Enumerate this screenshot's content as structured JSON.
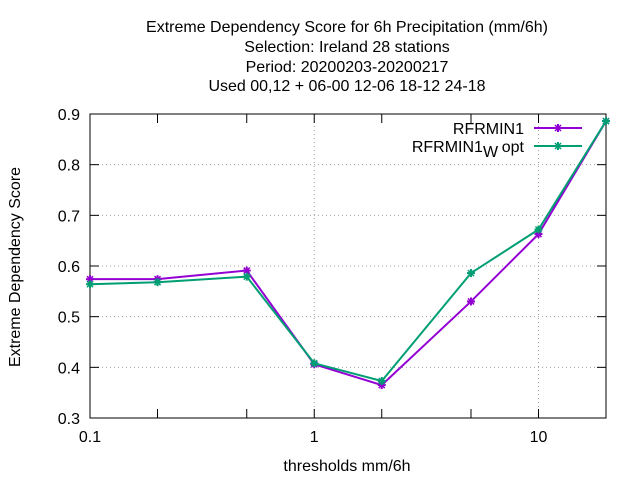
{
  "chart_data": {
    "type": "line",
    "title_lines": [
      "Extreme Dependency Score  for 6h Precipitation (mm/6h)",
      "Selection: Ireland     28 stations",
      "Period: 20200203-20200217",
      "Used  00,12  + 06-00 12-06 18-12 24-18"
    ],
    "xlabel": "thresholds mm/6h",
    "ylabel": "Extreme Dependency Score",
    "x_scale": "log",
    "xlim": [
      0.1,
      20
    ],
    "ylim": [
      0.3,
      0.9
    ],
    "x_major_ticks": [
      0.1,
      1,
      10
    ],
    "x_major_tick_labels": [
      "0.1",
      "1",
      "10"
    ],
    "x_minor_ticks": [
      0.2,
      0.5,
      2,
      5,
      20
    ],
    "y_ticks": [
      0.3,
      0.4,
      0.5,
      0.6,
      0.7,
      0.8,
      0.9
    ],
    "y_tick_labels": [
      "0.3",
      "0.4",
      "0.5",
      "0.6",
      "0.7",
      "0.8",
      "0.9"
    ],
    "grid": true,
    "legend_position": "top-right",
    "x": [
      0.1,
      0.2,
      0.5,
      1,
      2,
      5,
      10,
      20
    ],
    "series": [
      {
        "name_main": "RFRMIN1",
        "name_sub": "",
        "name_tail": "",
        "color": "#9400d3",
        "marker": "plus",
        "values": [
          0.574,
          0.574,
          0.591,
          0.406,
          0.365,
          0.53,
          0.663,
          0.886
        ]
      },
      {
        "name_main": "RFRMIN1",
        "name_sub": "W",
        "name_tail": "opt",
        "color": "#009e73",
        "marker": "plus",
        "values": [
          0.564,
          0.568,
          0.579,
          0.408,
          0.373,
          0.586,
          0.672,
          0.886
        ]
      }
    ]
  }
}
